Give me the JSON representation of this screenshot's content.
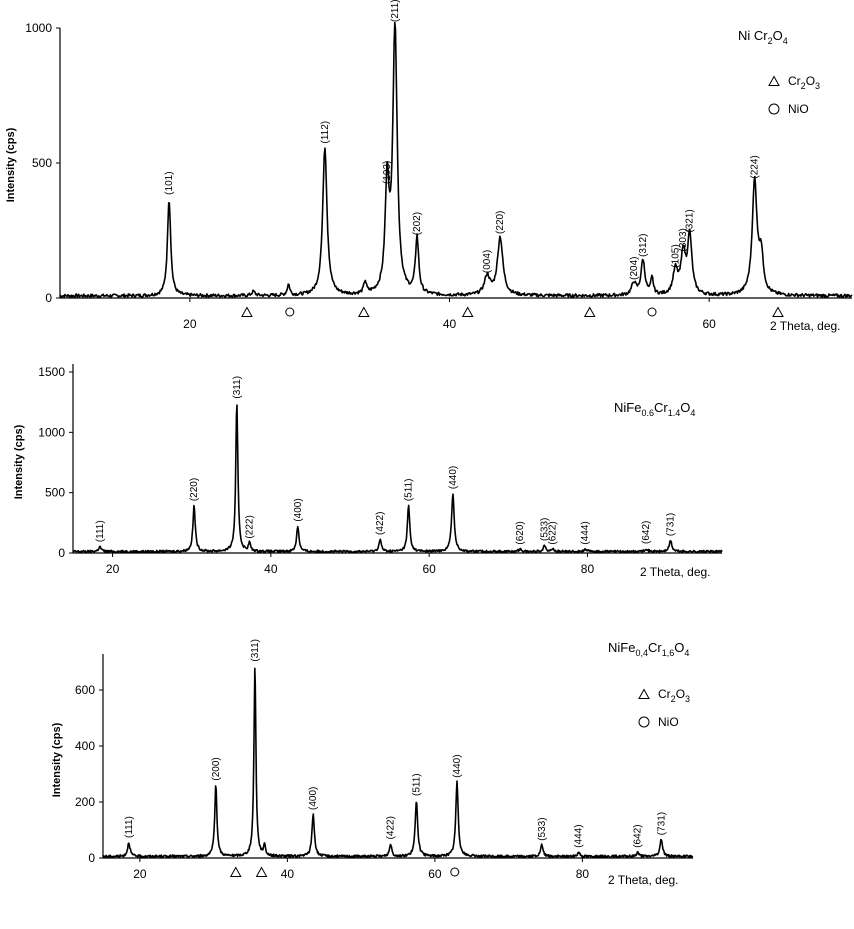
{
  "chart_data": [
    {
      "type": "line",
      "title_parts": [
        [
          "Ni Cr",
          false
        ],
        [
          "2",
          true
        ],
        [
          "O",
          false
        ],
        [
          "4",
          true
        ]
      ],
      "xlabel": "2  Theta, deg.",
      "ylabel": "Intensity (cps)",
      "xlim": [
        10,
        71
      ],
      "ylim": [
        0,
        1000
      ],
      "x_ticks": [
        20,
        40,
        60
      ],
      "y_ticks": [
        0,
        500,
        1000
      ],
      "legend": [
        {
          "symbol": "triangle",
          "parts": [
            [
              "Cr",
              false
            ],
            [
              "2",
              true
            ],
            [
              "O",
              false
            ],
            [
              "3",
              true
            ]
          ]
        },
        {
          "symbol": "circle",
          "parts": [
            [
              "NiO",
              false
            ]
          ]
        }
      ],
      "peaks": [
        {
          "x": 18.4,
          "y": 360,
          "label": "(101)",
          "w": 0.15
        },
        {
          "x": 24.9,
          "y": 15,
          "label": "",
          "w": 0.15
        },
        {
          "x": 27.6,
          "y": 40,
          "label": "",
          "w": 0.12
        },
        {
          "x": 30.4,
          "y": 550,
          "label": "(112)",
          "w": 0.2
        },
        {
          "x": 33.5,
          "y": 45,
          "label": "",
          "w": 0.12
        },
        {
          "x": 35.2,
          "y": 400,
          "label": "(103)",
          "w": 0.18
        },
        {
          "x": 35.8,
          "y": 1000,
          "label": "(211)",
          "w": 0.2
        },
        {
          "x": 37.5,
          "y": 210,
          "label": "(202)",
          "w": 0.15
        },
        {
          "x": 42.9,
          "y": 70,
          "label": "(004)",
          "w": 0.25
        },
        {
          "x": 43.9,
          "y": 215,
          "label": "(220)",
          "w": 0.25
        },
        {
          "x": 54.2,
          "y": 45,
          "label": "(204)",
          "w": 0.2
        },
        {
          "x": 54.9,
          "y": 130,
          "label": "(312)",
          "w": 0.18
        },
        {
          "x": 55.6,
          "y": 60,
          "label": "",
          "w": 0.12
        },
        {
          "x": 57.4,
          "y": 90,
          "label": "(105)",
          "w": 0.22
        },
        {
          "x": 58.0,
          "y": 150,
          "label": "(303)",
          "w": 0.2
        },
        {
          "x": 58.5,
          "y": 220,
          "label": "(321)",
          "w": 0.2
        },
        {
          "x": 63.5,
          "y": 420,
          "label": "(224)",
          "w": 0.22
        },
        {
          "x": 64.0,
          "y": 140,
          "label": "",
          "w": 0.2
        }
      ],
      "markers": [
        {
          "type": "triangle",
          "x": 24.4
        },
        {
          "type": "circle",
          "x": 27.7
        },
        {
          "type": "triangle",
          "x": 33.4
        },
        {
          "type": "triangle",
          "x": 41.4
        },
        {
          "type": "triangle",
          "x": 50.8
        },
        {
          "type": "circle",
          "x": 55.6
        },
        {
          "type": "triangle",
          "x": 65.3
        }
      ]
    },
    {
      "type": "line",
      "title_parts": [
        [
          "NiFe",
          false
        ],
        [
          "0.6",
          true
        ],
        [
          "Cr",
          false
        ],
        [
          "1.4",
          true
        ],
        [
          "O",
          false
        ],
        [
          "4",
          true
        ]
      ],
      "xlabel": "2  Theta, deg.",
      "ylabel": "Intensity (cps)",
      "xlim": [
        15,
        97
      ],
      "ylim": [
        0,
        1500
      ],
      "x_ticks": [
        20,
        40,
        60,
        80
      ],
      "y_ticks": [
        0,
        500,
        1000,
        1500
      ],
      "legend": [],
      "peaks": [
        {
          "x": 18.4,
          "y": 40,
          "label": "(111)",
          "w": 0.2
        },
        {
          "x": 30.3,
          "y": 380,
          "label": "(220)",
          "w": 0.18
        },
        {
          "x": 35.7,
          "y": 1230,
          "label": "(311)",
          "w": 0.16
        },
        {
          "x": 37.3,
          "y": 70,
          "label": "(222)",
          "w": 0.15
        },
        {
          "x": 43.4,
          "y": 210,
          "label": "(400)",
          "w": 0.18
        },
        {
          "x": 53.8,
          "y": 100,
          "label": "(422)",
          "w": 0.18
        },
        {
          "x": 57.4,
          "y": 380,
          "label": "(511)",
          "w": 0.18
        },
        {
          "x": 63.0,
          "y": 480,
          "label": "(440)",
          "w": 0.2
        },
        {
          "x": 71.5,
          "y": 20,
          "label": "(620)",
          "w": 0.2
        },
        {
          "x": 74.6,
          "y": 50,
          "label": "(533)",
          "w": 0.2
        },
        {
          "x": 75.6,
          "y": 20,
          "label": "(622)",
          "w": 0.2
        },
        {
          "x": 79.7,
          "y": 20,
          "label": "(444)",
          "w": 0.2
        },
        {
          "x": 87.4,
          "y": 25,
          "label": "(642)",
          "w": 0.2
        },
        {
          "x": 90.5,
          "y": 90,
          "label": "(731)",
          "w": 0.2
        }
      ],
      "markers": []
    },
    {
      "type": "line",
      "title_parts": [
        [
          "NiFe",
          false
        ],
        [
          "0,4",
          true
        ],
        [
          "Cr",
          false
        ],
        [
          "1,6",
          true
        ],
        [
          "O",
          false
        ],
        [
          "4",
          true
        ]
      ],
      "xlabel": "2  Theta, deg.",
      "ylabel": "Intensity (cps)",
      "xlim": [
        15,
        95
      ],
      "ylim": [
        0,
        700
      ],
      "x_ticks": [
        20,
        40,
        60,
        80
      ],
      "y_ticks": [
        0,
        200,
        400,
        600
      ],
      "legend": [
        {
          "symbol": "triangle",
          "parts": [
            [
              "Cr",
              false
            ],
            [
              "2",
              true
            ],
            [
              "O",
              false
            ],
            [
              "3",
              true
            ]
          ]
        },
        {
          "symbol": "circle",
          "parts": [
            [
              "NiO",
              false
            ]
          ]
        }
      ],
      "peaks": [
        {
          "x": 18.5,
          "y": 50,
          "label": "(111)",
          "w": 0.2
        },
        {
          "x": 30.3,
          "y": 255,
          "label": "(200)",
          "w": 0.18
        },
        {
          "x": 35.6,
          "y": 680,
          "label": "(311)",
          "w": 0.16
        },
        {
          "x": 36.9,
          "y": 40,
          "label": "",
          "w": 0.15
        },
        {
          "x": 43.5,
          "y": 150,
          "label": "(400)",
          "w": 0.2
        },
        {
          "x": 54.0,
          "y": 45,
          "label": "(422)",
          "w": 0.18
        },
        {
          "x": 57.5,
          "y": 200,
          "label": "(511)",
          "w": 0.2
        },
        {
          "x": 63.0,
          "y": 265,
          "label": "(440)",
          "w": 0.2
        },
        {
          "x": 74.5,
          "y": 40,
          "label": "(533)",
          "w": 0.2
        },
        {
          "x": 79.5,
          "y": 15,
          "label": "(444)",
          "w": 0.2
        },
        {
          "x": 87.5,
          "y": 15,
          "label": "(642)",
          "w": 0.2
        },
        {
          "x": 90.7,
          "y": 60,
          "label": "(731)",
          "w": 0.22
        }
      ],
      "markers": [
        {
          "type": "triangle",
          "x": 33.0
        },
        {
          "type": "triangle",
          "x": 36.5
        },
        {
          "type": "circle",
          "x": 62.7
        }
      ]
    }
  ]
}
